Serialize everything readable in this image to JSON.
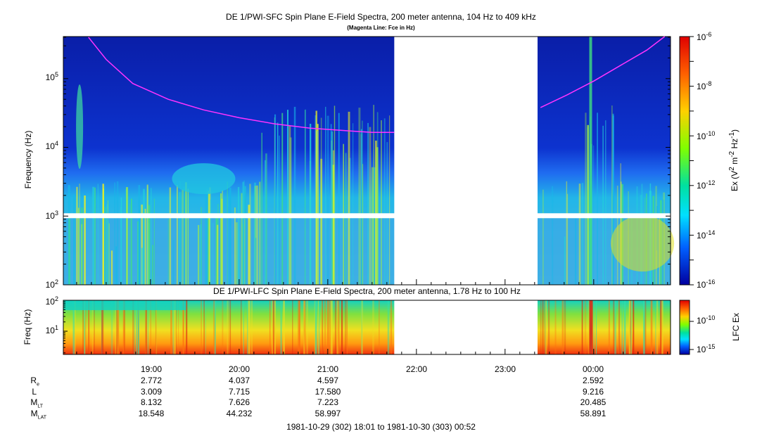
{
  "chart_data": [
    {
      "type": "heatmap",
      "title": "DE 1/PWI-SFC  Spin Plane E-Field Spectra, 200 meter antenna, 104 Hz to 409 kHz",
      "subtitle": "(Magenta Line: Fce in Hz)",
      "ylabel": "Frequency (Hz)",
      "yscale": "log",
      "ylim": [
        100,
        409000
      ],
      "y_ticks": [
        "10^2",
        "10^3",
        "10^4",
        "10^5"
      ],
      "x_ticks": [
        "19:00",
        "20:00",
        "21:00",
        "22:00",
        "23:00",
        "00:00"
      ],
      "data_gaps": [
        [
          "21:45",
          "23:20"
        ]
      ],
      "colorbar": {
        "label": "Ex (V^2 m^-2 Hz^-1)",
        "scale": "log",
        "range": [
          1e-16,
          1e-06
        ],
        "ticks": [
          "10^-6",
          "10^-8",
          "10^-10",
          "10^-12",
          "10^-14",
          "10^-16"
        ]
      },
      "series": [
        {
          "name": "Fce",
          "color": "#ff33ff",
          "x_hours": [
            18.3,
            18.5,
            18.8,
            19.2,
            19.6,
            20.0,
            20.4,
            20.8,
            21.2,
            21.5,
            21.75,
            23.4,
            23.7,
            24.0,
            24.3,
            24.6,
            24.8
          ],
          "y_hz": [
            400000,
            190000,
            85000,
            50000,
            35000,
            27000,
            22000,
            19000,
            17500,
            16500,
            16500,
            38000,
            58000,
            92000,
            155000,
            260000,
            410000
          ]
        }
      ]
    },
    {
      "type": "heatmap",
      "title": "DE 1/PWI-LFC  Spin Plane E-Field Spectra, 200 meter antenna, 1.78 Hz to 100 Hz",
      "ylabel": "Freq (Hz)",
      "yscale": "log",
      "ylim": [
        1.78,
        100
      ],
      "y_ticks": [
        "10^1",
        "10^2"
      ],
      "x_ticks": [
        "19:00",
        "20:00",
        "21:00",
        "22:00",
        "23:00",
        "00:00"
      ],
      "data_gaps": [
        [
          "21:45",
          "23:20"
        ]
      ],
      "colorbar": {
        "label": "LFC Ex",
        "scale": "log",
        "ticks": [
          "10^-10",
          "10^-15"
        ]
      }
    }
  ],
  "ephemeris": {
    "labels": [
      {
        "base": "R",
        "sub": "e"
      },
      {
        "base": "L",
        "sub": ""
      },
      {
        "base": "M",
        "sub": "LT"
      },
      {
        "base": "M",
        "sub": "LAT"
      }
    ],
    "columns": [
      {
        "time": "19:00",
        "values": [
          "2.772",
          "3.009",
          "8.132",
          "18.548"
        ]
      },
      {
        "time": "20:00",
        "values": [
          "4.037",
          "7.715",
          "7.626",
          "44.232"
        ]
      },
      {
        "time": "21:00",
        "values": [
          "4.597",
          "17.580",
          "7.223",
          "58.997"
        ]
      },
      {
        "time": "00:00",
        "values": [
          "2.592",
          "9.216",
          "20.485",
          "58.891"
        ]
      }
    ]
  },
  "time_range": "1981-10-29 (302) 18:01 to 1981-10-30 (303) 00:52"
}
